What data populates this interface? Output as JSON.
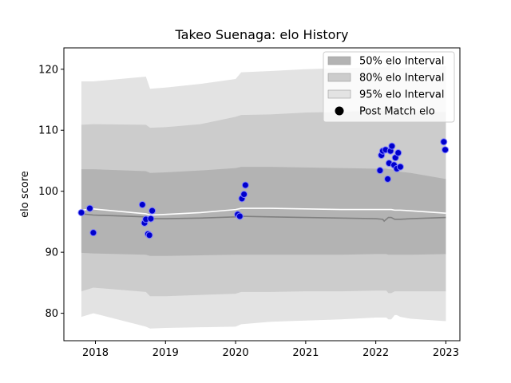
{
  "chart_data": {
    "type": "line",
    "title": "Takeo Suenaga: elo History",
    "xlabel": "",
    "ylabel": "elo score",
    "xlim": [
      2017.55,
      2023.2
    ],
    "ylim": [
      75.5,
      123.5
    ],
    "x_ticks": [
      2018,
      2019,
      2020,
      2021,
      2022,
      2023
    ],
    "x_tick_labels": [
      "2018",
      "2019",
      "2020",
      "2021",
      "2022",
      "2023"
    ],
    "y_ticks": [
      80,
      90,
      100,
      110,
      120
    ],
    "y_tick_labels": [
      "80",
      "90",
      "100",
      "110",
      "120"
    ],
    "grid": false,
    "legend_position": "top-right",
    "colors": {
      "band_50": "#b3b3b3",
      "band_80": "#cccccc",
      "band_95": "#e3e3e3",
      "median_line": "#808080",
      "mean_line": "#ffffff",
      "points_fill": "#0000cc",
      "points_edge": "#8080ff"
    },
    "legend": [
      {
        "label": "50% elo Interval",
        "kind": "band_50"
      },
      {
        "label": "80% elo Interval",
        "kind": "band_80"
      },
      {
        "label": "95% elo Interval",
        "kind": "band_95"
      },
      {
        "label": "Post Match elo",
        "kind": "points"
      }
    ],
    "bands": {
      "x": [
        2017.8,
        2017.97,
        2018.72,
        2018.78,
        2019.0,
        2019.5,
        2020.0,
        2020.08,
        2020.5,
        2021.0,
        2021.5,
        2022.0,
        2022.15,
        2022.18,
        2022.22,
        2022.27,
        2022.3,
        2022.35,
        2022.5,
        2023.0
      ],
      "upper_95": [
        118.0,
        118.0,
        118.8,
        116.8,
        117.0,
        117.6,
        118.4,
        119.5,
        119.7,
        120.0,
        120.2,
        120.3,
        120.3,
        121.2,
        121.2,
        120.5,
        120.5,
        120.2,
        120.3,
        120.5
      ],
      "upper_80": [
        110.9,
        111.0,
        110.9,
        110.4,
        110.5,
        111.0,
        112.2,
        112.5,
        112.6,
        112.9,
        113.0,
        113.2,
        113.2,
        113.8,
        113.8,
        113.2,
        113.2,
        112.9,
        112.9,
        113.0
      ],
      "upper_50": [
        103.6,
        103.6,
        103.3,
        103.0,
        103.1,
        103.4,
        103.8,
        104.0,
        104.0,
        103.9,
        103.8,
        103.7,
        103.7,
        103.6,
        103.6,
        103.4,
        103.4,
        103.2,
        103.0,
        102.0
      ],
      "lower_50": [
        89.9,
        89.8,
        89.6,
        89.4,
        89.4,
        89.5,
        89.6,
        89.6,
        89.6,
        89.6,
        89.6,
        89.7,
        89.7,
        89.6,
        89.6,
        89.6,
        89.6,
        89.6,
        89.6,
        89.7
      ],
      "lower_80": [
        83.6,
        84.2,
        83.5,
        82.8,
        82.8,
        83.0,
        83.2,
        83.5,
        83.5,
        83.6,
        83.6,
        83.7,
        83.7,
        83.3,
        83.3,
        83.6,
        83.6,
        83.6,
        83.6,
        83.6
      ],
      "lower_95": [
        79.4,
        80.0,
        77.8,
        77.5,
        77.6,
        77.7,
        77.8,
        78.2,
        78.6,
        78.8,
        79.0,
        79.3,
        79.3,
        79.0,
        79.0,
        79.7,
        79.7,
        79.4,
        79.1,
        78.7
      ]
    },
    "median_line": {
      "x": [
        2017.8,
        2017.97,
        2018.72,
        2018.78,
        2019.0,
        2019.5,
        2020.0,
        2020.08,
        2020.5,
        2021.0,
        2021.5,
        2022.0,
        2022.1,
        2022.12,
        2022.18,
        2022.22,
        2022.27,
        2022.3,
        2022.35,
        2022.5,
        2023.0
      ],
      "y": [
        96.3,
        96.1,
        95.8,
        95.5,
        95.5,
        95.6,
        95.8,
        95.9,
        95.8,
        95.7,
        95.6,
        95.5,
        95.4,
        95.1,
        95.7,
        95.7,
        95.4,
        95.4,
        95.4,
        95.5,
        95.7
      ]
    },
    "mean_line": {
      "x": [
        2017.8,
        2017.97,
        2018.72,
        2018.78,
        2019.0,
        2019.5,
        2020.0,
        2020.08,
        2020.5,
        2021.0,
        2021.5,
        2022.0,
        2022.18,
        2022.22,
        2022.27,
        2022.3,
        2022.35,
        2022.5,
        2023.0
      ],
      "y": [
        96.9,
        97.1,
        96.3,
        96.1,
        96.2,
        96.5,
        97.0,
        97.2,
        97.2,
        97.1,
        97.0,
        97.0,
        97.0,
        97.0,
        96.9,
        96.9,
        96.9,
        96.8,
        96.4
      ]
    },
    "points": {
      "x": [
        2017.8,
        2017.92,
        2017.97,
        2018.67,
        2018.7,
        2018.72,
        2018.75,
        2018.77,
        2018.79,
        2018.81,
        2020.03,
        2020.06,
        2020.09,
        2020.12,
        2020.14,
        2022.06,
        2022.08,
        2022.1,
        2022.14,
        2022.17,
        2022.19,
        2022.21,
        2022.23,
        2022.26,
        2022.28,
        2022.3,
        2022.32,
        2022.35,
        2022.97,
        2022.99
      ],
      "y": [
        96.5,
        97.2,
        93.2,
        97.8,
        94.8,
        95.4,
        93.0,
        92.8,
        95.5,
        96.8,
        96.2,
        95.9,
        98.8,
        99.5,
        101.0,
        103.4,
        105.9,
        106.6,
        106.8,
        102.0,
        104.6,
        106.6,
        107.4,
        104.3,
        105.5,
        103.7,
        106.3,
        104.0,
        108.1,
        106.8
      ]
    }
  }
}
